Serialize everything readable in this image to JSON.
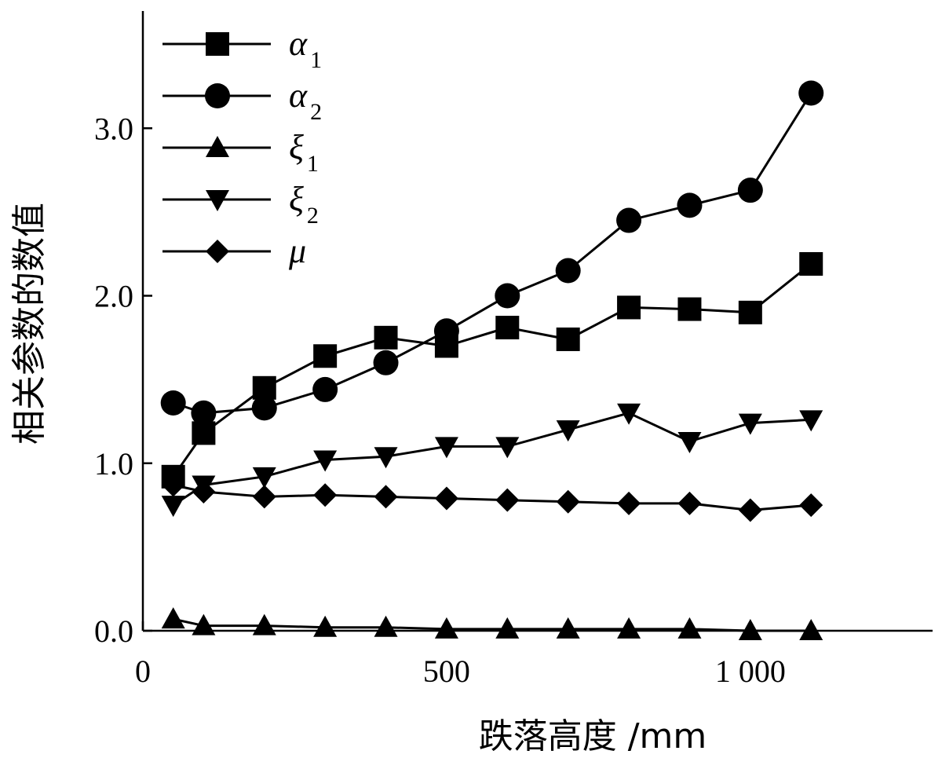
{
  "chart_data": {
    "type": "line",
    "xlabel": "跌落高度 /mm",
    "ylabel": "相关参数的数值",
    "xlim": [
      0,
      1300
    ],
    "ylim": [
      0,
      3.7
    ],
    "x_ticks": [
      {
        "value": 0,
        "label": "0"
      },
      {
        "value": 500,
        "label": "500"
      },
      {
        "value": 1000,
        "label": "1 000"
      }
    ],
    "y_ticks": [
      {
        "value": 0,
        "label": "0.0"
      },
      {
        "value": 1,
        "label": "1.0"
      },
      {
        "value": 2,
        "label": "2.0"
      },
      {
        "value": 3,
        "label": "3.0"
      }
    ],
    "x": [
      50,
      100,
      200,
      300,
      400,
      500,
      600,
      700,
      800,
      900,
      1000,
      1100
    ],
    "series": [
      {
        "name": "α",
        "sub": "1",
        "marker": "square",
        "values": [
          0.92,
          1.18,
          1.45,
          1.64,
          1.75,
          1.7,
          1.81,
          1.74,
          1.93,
          1.92,
          1.9,
          2.19
        ]
      },
      {
        "name": "α",
        "sub": "2",
        "marker": "circle",
        "values": [
          1.36,
          1.3,
          1.33,
          1.44,
          1.6,
          1.79,
          2.0,
          2.15,
          2.45,
          2.54,
          2.63,
          3.21
        ]
      },
      {
        "name": "ξ",
        "sub": "1",
        "marker": "triangle-up",
        "values": [
          0.07,
          0.03,
          0.03,
          0.02,
          0.02,
          0.01,
          0.01,
          0.01,
          0.01,
          0.01,
          0.0,
          0.0
        ]
      },
      {
        "name": "ξ",
        "sub": "2",
        "marker": "triangle-down",
        "values": [
          0.75,
          0.87,
          0.92,
          1.02,
          1.04,
          1.1,
          1.1,
          1.2,
          1.3,
          1.13,
          1.24,
          1.26
        ]
      },
      {
        "name": "μ",
        "sub": "",
        "marker": "diamond",
        "values": [
          0.87,
          0.83,
          0.8,
          0.81,
          0.8,
          0.79,
          0.78,
          0.77,
          0.76,
          0.76,
          0.72,
          0.75
        ]
      }
    ],
    "legend_position": "top-left",
    "grid": false
  }
}
